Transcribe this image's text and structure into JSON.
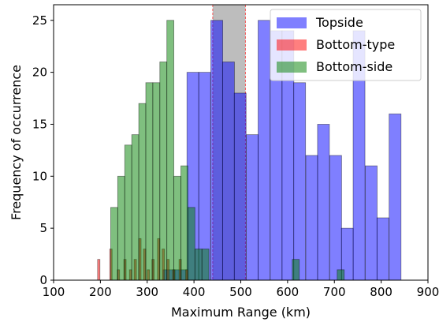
{
  "chart_data": {
    "type": "bar",
    "xlabel": "Maximum Range (km)",
    "ylabel": "Frequency of occurrence",
    "xlim": [
      100,
      900
    ],
    "ylim": [
      0,
      26.5
    ],
    "xticks": [
      100,
      200,
      300,
      400,
      500,
      600,
      700,
      800,
      900
    ],
    "yticks": [
      0,
      5,
      10,
      15,
      20,
      25
    ],
    "grid": false,
    "legend_position": "top-right",
    "highlight_band": {
      "x0": 440,
      "x1": 510,
      "color": "#bdbdbd"
    },
    "series": [
      {
        "name": "Topside",
        "color": "#0000ff",
        "bin_width": 25.4,
        "bins": [
          {
            "x0": 334,
            "value": 1
          },
          {
            "x0": 359,
            "value": 1
          },
          {
            "x0": 385,
            "value": 20
          },
          {
            "x0": 410,
            "value": 20
          },
          {
            "x0": 436,
            "value": 25
          },
          {
            "x0": 461,
            "value": 21
          },
          {
            "x0": 486,
            "value": 18
          },
          {
            "x0": 512,
            "value": 14
          },
          {
            "x0": 537,
            "value": 25
          },
          {
            "x0": 563,
            "value": 24
          },
          {
            "x0": 588,
            "value": 24
          },
          {
            "x0": 613,
            "value": 19
          },
          {
            "x0": 639,
            "value": 12
          },
          {
            "x0": 664,
            "value": 15
          },
          {
            "x0": 690,
            "value": 12
          },
          {
            "x0": 715,
            "value": 5
          },
          {
            "x0": 740,
            "value": 24
          },
          {
            "x0": 766,
            "value": 11
          },
          {
            "x0": 791,
            "value": 6
          },
          {
            "x0": 817,
            "value": 16
          }
        ]
      },
      {
        "name": "Bottom-type",
        "color": "#ff0000",
        "bin_width": 5,
        "bins": [
          {
            "x0": 194,
            "value": 2
          },
          {
            "x0": 220,
            "value": 3
          },
          {
            "x0": 236,
            "value": 1
          },
          {
            "x0": 250,
            "value": 2
          },
          {
            "x0": 262,
            "value": 1
          },
          {
            "x0": 272,
            "value": 2
          },
          {
            "x0": 282,
            "value": 4
          },
          {
            "x0": 292,
            "value": 3
          },
          {
            "x0": 300,
            "value": 1
          },
          {
            "x0": 310,
            "value": 2
          },
          {
            "x0": 322,
            "value": 4
          },
          {
            "x0": 332,
            "value": 3
          },
          {
            "x0": 342,
            "value": 2
          },
          {
            "x0": 354,
            "value": 1
          },
          {
            "x0": 368,
            "value": 2
          },
          {
            "x0": 382,
            "value": 1
          }
        ]
      },
      {
        "name": "Bottom-side",
        "color": "#008000",
        "bin_width": 15,
        "bins": [
          {
            "x0": 222,
            "value": 7
          },
          {
            "x0": 237,
            "value": 10
          },
          {
            "x0": 252,
            "value": 13
          },
          {
            "x0": 267,
            "value": 14
          },
          {
            "x0": 282,
            "value": 17
          },
          {
            "x0": 297,
            "value": 19
          },
          {
            "x0": 312,
            "value": 19
          },
          {
            "x0": 327,
            "value": 21
          },
          {
            "x0": 342,
            "value": 25
          },
          {
            "x0": 357,
            "value": 10
          },
          {
            "x0": 372,
            "value": 11
          },
          {
            "x0": 387,
            "value": 7
          },
          {
            "x0": 402,
            "value": 3
          },
          {
            "x0": 417,
            "value": 3
          },
          {
            "x0": 610,
            "value": 2
          },
          {
            "x0": 706,
            "value": 1
          }
        ]
      }
    ]
  }
}
